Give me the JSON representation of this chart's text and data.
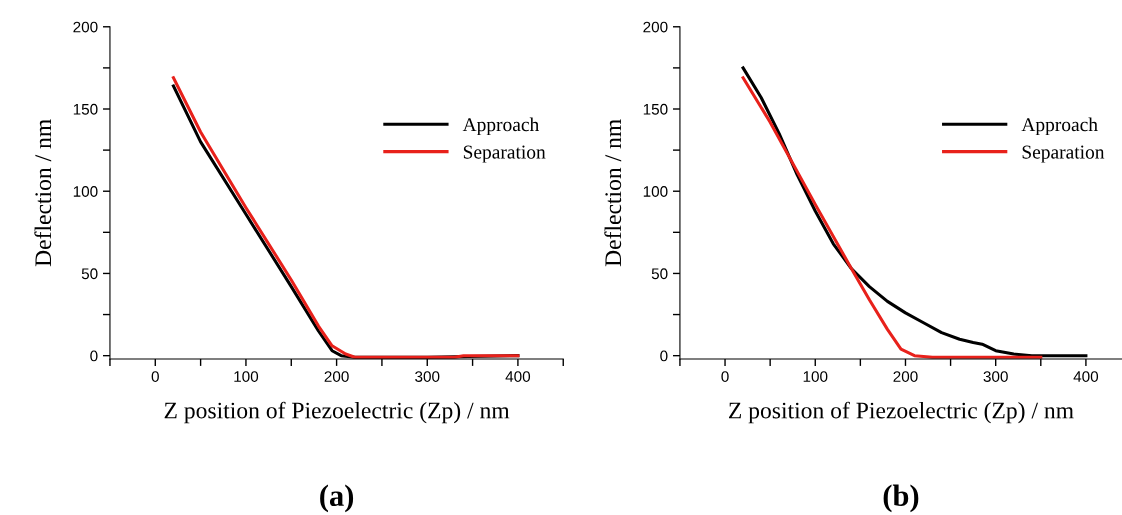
{
  "chart_data": [
    {
      "type": "line",
      "xlabel": "Z position of Piezoelectric (Zp) / nm",
      "ylabel": "Deflection / nm",
      "annotations": [
        "(a)"
      ],
      "xlim": [
        -50,
        450
      ],
      "ylim": [
        -2,
        200
      ],
      "xticks": [
        {
          "value": -50,
          "label": null
        },
        0,
        {
          "value": 50,
          "label": null
        },
        100,
        {
          "value": 150,
          "label": null
        },
        200,
        {
          "value": 250,
          "label": null
        },
        300,
        {
          "value": 350,
          "label": null
        },
        400,
        {
          "value": 450,
          "label": null
        }
      ],
      "yticks": [
        0,
        {
          "value": 25,
          "label": null
        },
        50,
        {
          "value": 75,
          "label": null
        },
        100,
        {
          "value": 125,
          "label": null
        },
        150,
        {
          "value": 175,
          "label": null
        },
        200
      ],
      "legend": "upper right",
      "grid": false,
      "marker": "none",
      "line_style": "solid",
      "series": [
        {
          "name": "Approach",
          "color": "#000000",
          "x": [
            20,
            50,
            100,
            150,
            180,
            195,
            205,
            220,
            300,
            400
          ],
          "values": [
            164,
            130,
            86,
            42,
            15,
            3,
            0,
            -1,
            -1,
            0
          ]
        },
        {
          "name": "Separation",
          "color": "#e8211b",
          "x": [
            20,
            50,
            100,
            150,
            180,
            195,
            210,
            220,
            330,
            340,
            400
          ],
          "values": [
            169,
            136,
            90,
            46,
            18,
            6,
            1,
            -1,
            -1,
            0,
            0
          ]
        }
      ]
    },
    {
      "type": "line",
      "xlabel": "Z position of Piezoelectric (Zp) / nm",
      "ylabel": "Deflection / nm",
      "annotations": [
        "(b)"
      ],
      "xlim": [
        -50,
        440
      ],
      "ylim": [
        -2,
        200
      ],
      "xticks": [
        {
          "value": -50,
          "label": null
        },
        0,
        {
          "value": 50,
          "label": null
        },
        100,
        {
          "value": 150,
          "label": null
        },
        200,
        {
          "value": 250,
          "label": null
        },
        300,
        {
          "value": 350,
          "label": null
        },
        400
      ],
      "yticks": [
        0,
        {
          "value": 25,
          "label": null
        },
        50,
        {
          "value": 75,
          "label": null
        },
        100,
        {
          "value": 125,
          "label": null
        },
        150,
        {
          "value": 175,
          "label": null
        },
        200
      ],
      "legend": "upper right",
      "grid": false,
      "marker": "none",
      "line_style": "solid",
      "series": [
        {
          "name": "Approach",
          "color": "#000000",
          "x": [
            20,
            40,
            60,
            80,
            100,
            120,
            140,
            160,
            180,
            200,
            220,
            240,
            260,
            275,
            285,
            300,
            320,
            340,
            400
          ],
          "values": [
            175,
            157,
            135,
            110,
            88,
            68,
            53,
            42,
            33,
            26,
            20,
            14,
            10,
            8,
            7,
            3,
            1,
            0,
            0
          ]
        },
        {
          "name": "Separation",
          "color": "#e8211b",
          "x": [
            20,
            50,
            100,
            140,
            160,
            180,
            195,
            210,
            230,
            350
          ],
          "values": [
            169,
            142,
            92,
            53,
            34,
            16,
            4,
            0,
            -1,
            -1
          ]
        }
      ]
    }
  ]
}
